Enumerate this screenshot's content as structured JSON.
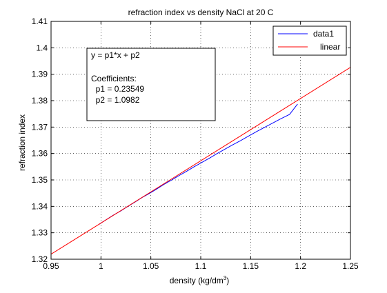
{
  "chart_data": {
    "type": "line",
    "title": "refraction index vs density NaCl at 20 C",
    "xlabel_main": "density (kg/dm",
    "xlabel_sup": "3",
    "xlabel_close": ")",
    "ylabel": "refraction index",
    "xlim": [
      0.95,
      1.25
    ],
    "ylim": [
      1.32,
      1.41
    ],
    "xticks": [
      0.95,
      1,
      1.05,
      1.1,
      1.15,
      1.2,
      1.25
    ],
    "xtick_labels": [
      "0.95",
      "1",
      "1.05",
      "1.1",
      "1.15",
      "1.2",
      "1.25"
    ],
    "yticks": [
      1.32,
      1.33,
      1.34,
      1.35,
      1.36,
      1.37,
      1.38,
      1.39,
      1.4,
      1.41
    ],
    "ytick_labels": [
      "1.32",
      "1.33",
      "1.34",
      "1.35",
      "1.36",
      "1.37",
      "1.38",
      "1.39",
      "1.4",
      "1.41"
    ],
    "grid": true,
    "legend_position": "top-right",
    "series": [
      {
        "name": "data1",
        "color": "#0000ff",
        "x": [
          0.998,
          1.005,
          1.012,
          1.02,
          1.027,
          1.034,
          1.041,
          1.049,
          1.056,
          1.063,
          1.071,
          1.078,
          1.086,
          1.093,
          1.101,
          1.109,
          1.116,
          1.124,
          1.132,
          1.14,
          1.148,
          1.156,
          1.164,
          1.172,
          1.18,
          1.189,
          1.197
        ],
        "y": [
          1.3332,
          1.3349,
          1.3366,
          1.3383,
          1.34,
          1.3416,
          1.3433,
          1.345,
          1.3466,
          1.3483,
          1.35,
          1.3516,
          1.3533,
          1.3549,
          1.3566,
          1.3583,
          1.3599,
          1.3616,
          1.3633,
          1.3649,
          1.3666,
          1.3683,
          1.3699,
          1.3715,
          1.3731,
          1.3748,
          1.3787
        ]
      },
      {
        "name": "linear",
        "color": "#ff0000",
        "x": [
          0.95,
          1.25
        ],
        "y": [
          1.3219,
          1.3926
        ]
      }
    ],
    "annotation": {
      "lines": [
        "y = p1*x + p2",
        "",
        "Coefficients:",
        "  p1 = 0.23549",
        "  p2 = 1.0982"
      ]
    }
  }
}
